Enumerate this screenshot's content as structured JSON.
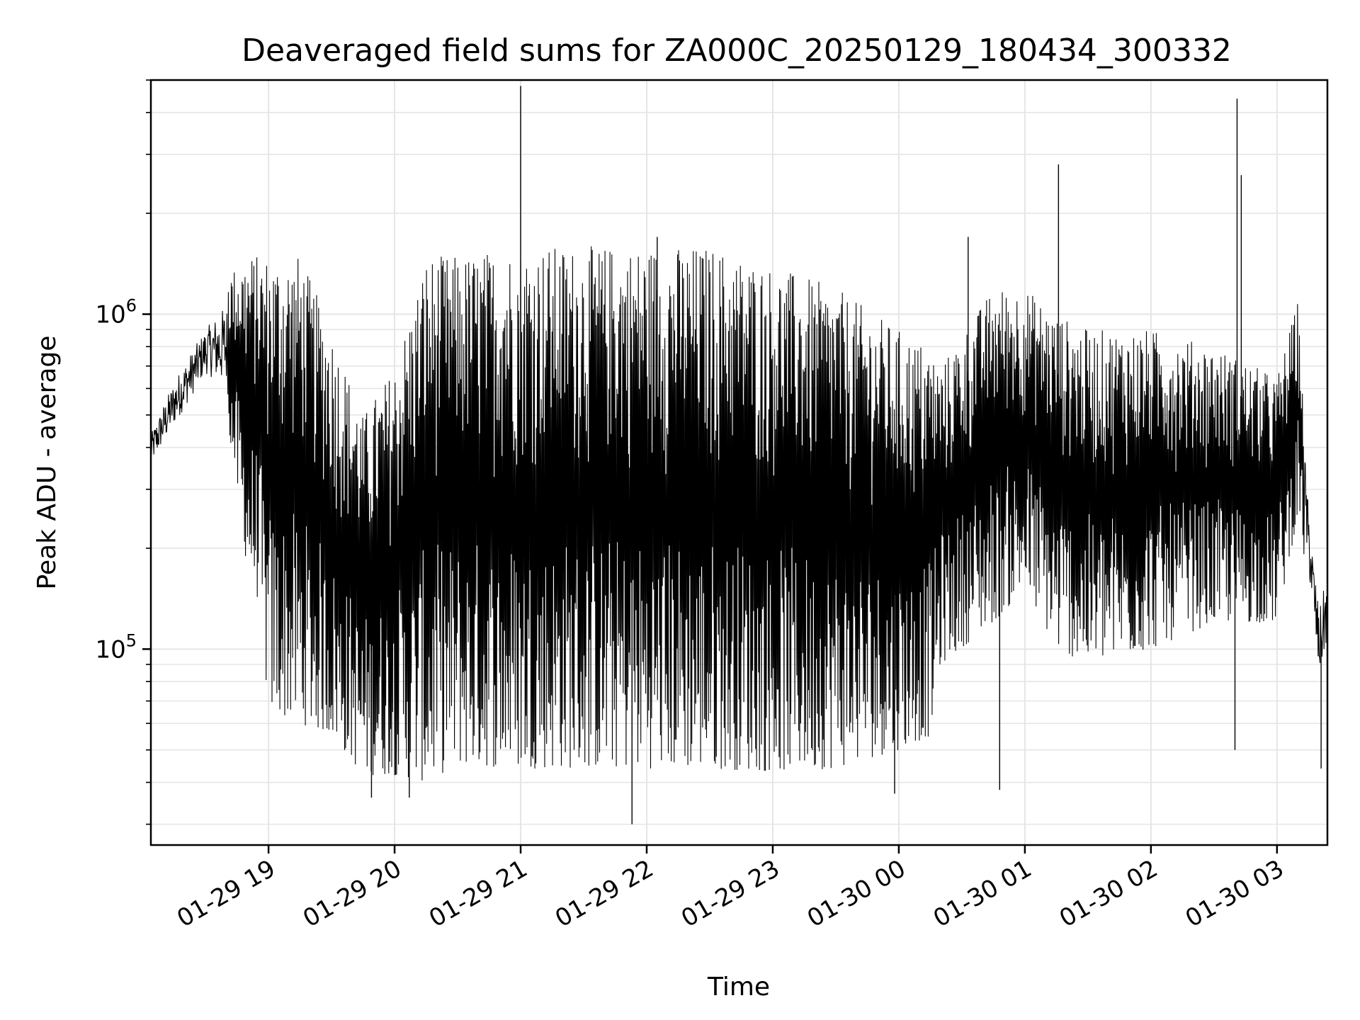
{
  "chart_data": {
    "type": "line",
    "title": "Deaveraged field sums for ZA000C_20250129_180434_300332",
    "xlabel": "Time",
    "ylabel": "Peak ADU - average",
    "yscale": "log",
    "grid": true,
    "line_color": "#000000",
    "grid_color": "#e5e5e5",
    "xlim": [
      "2025-01-29 18:04",
      "2025-01-30 03:24"
    ],
    "ylim": [
      26000,
      5000000
    ],
    "x_ticks": [
      {
        "value": "2025-01-29 19:00",
        "label": "01-29 19"
      },
      {
        "value": "2025-01-29 20:00",
        "label": "01-29 20"
      },
      {
        "value": "2025-01-29 21:00",
        "label": "01-29 21"
      },
      {
        "value": "2025-01-29 22:00",
        "label": "01-29 22"
      },
      {
        "value": "2025-01-29 23:00",
        "label": "01-29 23"
      },
      {
        "value": "2025-01-30 00:00",
        "label": "01-30 00"
      },
      {
        "value": "2025-01-30 01:00",
        "label": "01-30 01"
      },
      {
        "value": "2025-01-30 02:00",
        "label": "01-30 02"
      },
      {
        "value": "2025-01-30 03:00",
        "label": "01-30 03"
      }
    ],
    "y_ticks": [
      {
        "value": 100000,
        "base": "10",
        "exp": "5"
      },
      {
        "value": 1000000,
        "base": "10",
        "exp": "6"
      }
    ],
    "envelope": [
      {
        "t": "2025-01-29 18:04",
        "low": 330000,
        "high": 470000
      },
      {
        "t": "2025-01-29 18:15",
        "low": 420000,
        "high": 700000
      },
      {
        "t": "2025-01-29 18:30",
        "low": 600000,
        "high": 1000000
      },
      {
        "t": "2025-01-29 18:40",
        "low": 500000,
        "high": 1300000
      },
      {
        "t": "2025-01-29 18:50",
        "low": 170000,
        "high": 1500000
      },
      {
        "t": "2025-01-29 18:55",
        "low": 140000,
        "high": 1500000
      },
      {
        "t": "2025-01-29 19:00",
        "low": 65000,
        "high": 1500000
      },
      {
        "t": "2025-01-29 19:15",
        "low": 60000,
        "high": 1500000
      },
      {
        "t": "2025-01-29 19:30",
        "low": 55000,
        "high": 900000
      },
      {
        "t": "2025-01-29 19:45",
        "low": 42000,
        "high": 500000
      },
      {
        "t": "2025-01-29 20:00",
        "low": 42000,
        "high": 700000
      },
      {
        "t": "2025-01-29 20:15",
        "low": 40000,
        "high": 1500000
      },
      {
        "t": "2025-01-29 20:30",
        "low": 45000,
        "high": 1500000
      },
      {
        "t": "2025-01-29 21:00",
        "low": 44000,
        "high": 1600000
      },
      {
        "t": "2025-01-29 21:30",
        "low": 44000,
        "high": 1600000
      },
      {
        "t": "2025-01-29 22:00",
        "low": 44000,
        "high": 1600000
      },
      {
        "t": "2025-01-29 22:30",
        "low": 44000,
        "high": 1600000
      },
      {
        "t": "2025-01-29 23:00",
        "low": 43000,
        "high": 1400000
      },
      {
        "t": "2025-01-29 23:30",
        "low": 44000,
        "high": 1200000
      },
      {
        "t": "2025-01-30 00:00",
        "low": 50000,
        "high": 900000
      },
      {
        "t": "2025-01-30 00:15",
        "low": 55000,
        "high": 800000
      },
      {
        "t": "2025-01-30 00:20",
        "low": 90000,
        "high": 700000
      },
      {
        "t": "2025-01-30 00:45",
        "low": 120000,
        "high": 1200000
      },
      {
        "t": "2025-01-30 01:00",
        "low": 150000,
        "high": 1200000
      },
      {
        "t": "2025-01-30 01:15",
        "low": 100000,
        "high": 1000000
      },
      {
        "t": "2025-01-30 01:30",
        "low": 90000,
        "high": 900000
      },
      {
        "t": "2025-01-30 02:00",
        "low": 100000,
        "high": 900000
      },
      {
        "t": "2025-01-30 02:30",
        "low": 120000,
        "high": 800000
      },
      {
        "t": "2025-01-30 03:00",
        "low": 120000,
        "high": 650000
      },
      {
        "t": "2025-01-30 03:10",
        "low": 250000,
        "high": 1100000
      },
      {
        "t": "2025-01-30 03:15",
        "low": 150000,
        "high": 300000
      },
      {
        "t": "2025-01-30 03:20",
        "low": 70000,
        "high": 150000
      },
      {
        "t": "2025-01-30 03:24",
        "low": 90000,
        "high": 200000
      }
    ],
    "spikes": [
      {
        "t": "2025-01-29 21:00",
        "value": 4800000
      },
      {
        "t": "2025-01-30 01:16",
        "value": 2800000
      },
      {
        "t": "2025-01-30 02:41",
        "value": 4400000
      },
      {
        "t": "2025-01-30 02:43",
        "value": 2600000
      },
      {
        "t": "2025-01-29 22:05",
        "value": 1700000
      },
      {
        "t": "2025-01-30 00:33",
        "value": 1700000
      }
    ],
    "dips": [
      {
        "t": "2025-01-29 21:53",
        "value": 30000
      },
      {
        "t": "2025-01-29 20:07",
        "value": 36000
      },
      {
        "t": "2025-01-30 00:48",
        "value": 38000
      },
      {
        "t": "2025-01-29 23:58",
        "value": 37000
      },
      {
        "t": "2025-01-29 19:49",
        "value": 36000
      },
      {
        "t": "2025-01-30 03:21",
        "value": 44000
      },
      {
        "t": "2025-01-30 02:40",
        "value": 50000
      }
    ]
  }
}
